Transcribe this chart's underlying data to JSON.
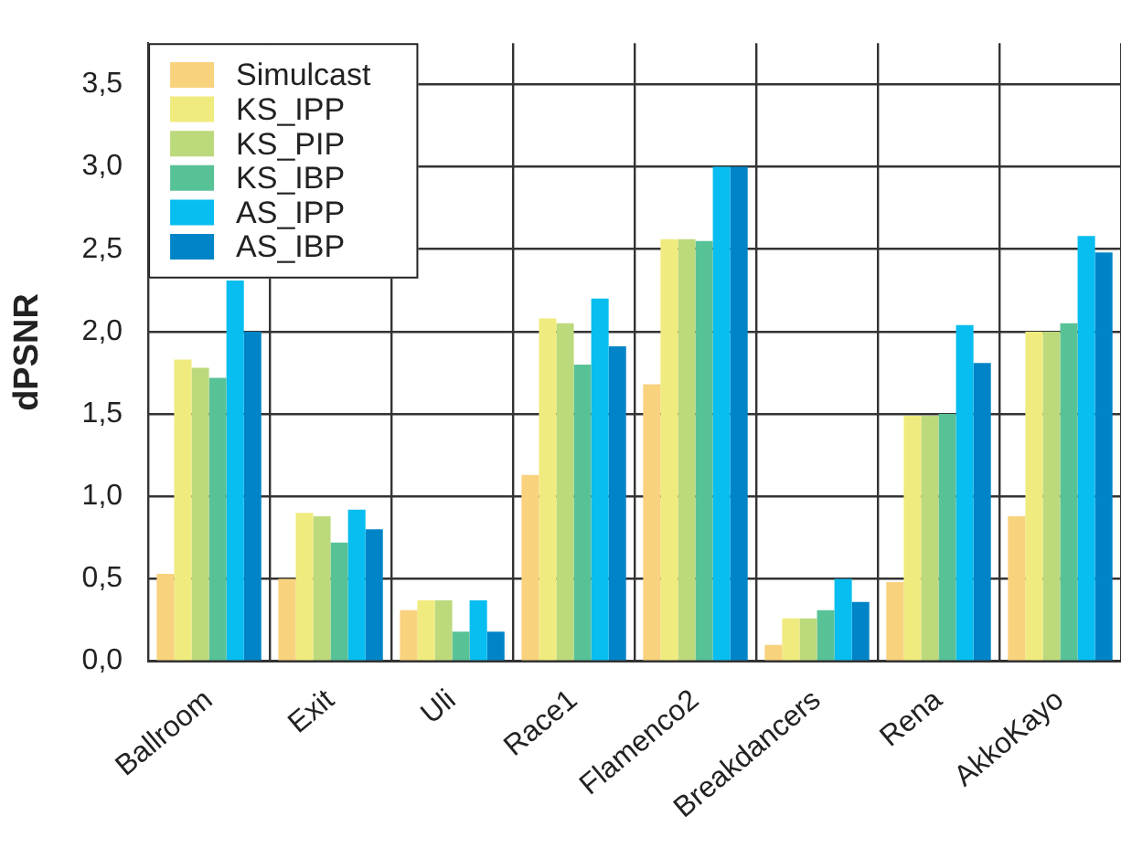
{
  "chart_data": {
    "type": "bar",
    "ylabel": "dPSNR",
    "categories": [
      "Ballroom",
      "Exit",
      "Uli",
      "Race1",
      "Flamenco2",
      "Breakdancers",
      "Rena",
      "AkkoKayo"
    ],
    "series": [
      {
        "name": "Simulcast",
        "color": "#f9d27e",
        "values": [
          0.53,
          0.5,
          0.31,
          1.13,
          1.68,
          0.1,
          0.48,
          0.88
        ]
      },
      {
        "name": "KS_IPP",
        "color": "#f0eb7e",
        "values": [
          1.83,
          0.9,
          0.37,
          2.08,
          2.56,
          0.26,
          1.49,
          2.0
        ]
      },
      {
        "name": "KS_PIP",
        "color": "#bcd97b",
        "values": [
          1.78,
          0.88,
          0.37,
          2.05,
          2.56,
          0.26,
          1.49,
          2.0
        ]
      },
      {
        "name": "KS_IBP",
        "color": "#58c297",
        "values": [
          1.72,
          0.72,
          0.18,
          1.8,
          2.55,
          0.31,
          1.5,
          2.05
        ]
      },
      {
        "name": "AS_IPP",
        "color": "#08bdef",
        "values": [
          2.31,
          0.92,
          0.37,
          2.2,
          3.0,
          0.5,
          2.04,
          2.58
        ]
      },
      {
        "name": "AS_IBP",
        "color": "#0084c8",
        "values": [
          2.0,
          0.8,
          0.18,
          1.91,
          3.0,
          0.36,
          1.81,
          2.48
        ]
      }
    ],
    "ylim": [
      0,
      3.75
    ],
    "yticks": [
      {
        "value": 0,
        "label": "0,0"
      },
      {
        "value": 0.5,
        "label": "0,5"
      },
      {
        "value": 1,
        "label": "1,0"
      },
      {
        "value": 1.5,
        "label": "1,5"
      },
      {
        "value": 2,
        "label": "2,0"
      },
      {
        "value": 2.5,
        "label": "2,5"
      },
      {
        "value": 3,
        "label": "3,0"
      },
      {
        "value": 3.5,
        "label": "3,5"
      }
    ],
    "grid": true,
    "legend": "top left"
  }
}
